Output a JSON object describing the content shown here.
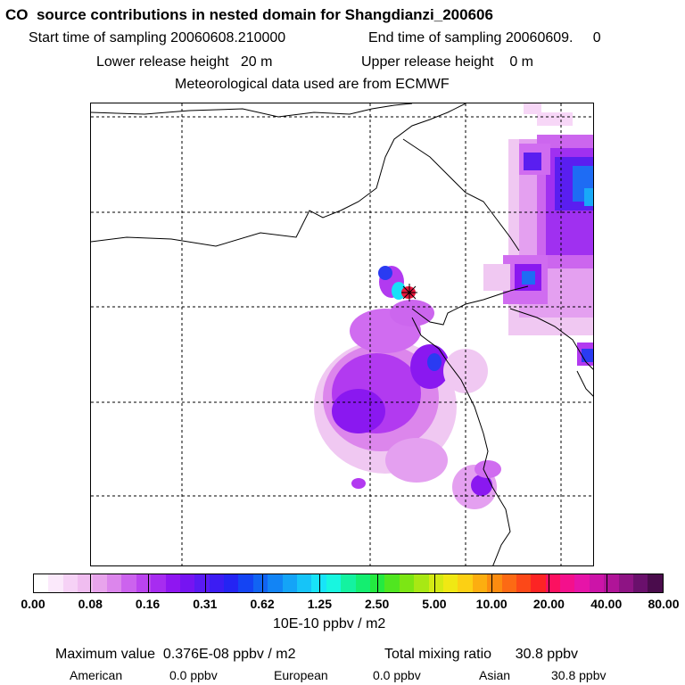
{
  "header": {
    "title": "CO  source contributions in nested domain for Shangdianzi_200606",
    "start_label": "Start time of sampling 20060608.210000",
    "end_label": "End time of sampling 20060609.     0",
    "lower_release": "Lower release height   20 m",
    "upper_release": "Upper release height    0 m",
    "meteo": "Meteorological data used are from ECMWF"
  },
  "map": {
    "station_marker": "star-icon",
    "gridlines": "dashed",
    "plume_colors": [
      "#f7d7f7",
      "#e9a7f3",
      "#d06cf0",
      "#b23af0",
      "#8a18f0",
      "#5a1ef0",
      "#2a3bf2",
      "#1e6cf4",
      "#18a9f8",
      "#18e0f8",
      "#14f2a6"
    ]
  },
  "colorbar": {
    "colors": [
      "#ffffff",
      "#fbe9fb",
      "#f6d2f6",
      "#f0bdf0",
      "#e8a4ec",
      "#dc86ec",
      "#cc63ee",
      "#bb44ef",
      "#a72cf0",
      "#8f16f1",
      "#7614f2",
      "#5a1af3",
      "#3c1cf3",
      "#2424f3",
      "#1444f3",
      "#1164f3",
      "#1284f5",
      "#14a4f7",
      "#16c4f8",
      "#18e4f8",
      "#18f6e0",
      "#14f2a0",
      "#14ee70",
      "#24ea40",
      "#50e620",
      "#7ce614",
      "#a8e814",
      "#d4ea14",
      "#f0e814",
      "#fcd014",
      "#fcae10",
      "#fc8c10",
      "#fc6a14",
      "#fc4818",
      "#fc2424",
      "#fc1060",
      "#f4108c",
      "#e614a8",
      "#cc14a8",
      "#b01498",
      "#8e1484",
      "#6a106c",
      "#4a0c4c"
    ],
    "ticks": [
      "0.00",
      "0.08",
      "0.16",
      "0.31",
      "0.62",
      "1.25",
      "2.50",
      "5.00",
      "10.00",
      "20.00",
      "40.00",
      "80.00"
    ],
    "unit": "10E-10 ppbv / m2"
  },
  "summary": {
    "max_value": "Maximum value  0.376E-08 ppbv / m2",
    "total": "Total mixing ratio      30.8 ppbv",
    "american_label": "American",
    "american_value": "0.0 ppbv",
    "european_label": "European",
    "european_value": "0.0 ppbv",
    "asian_label": "Asian",
    "asian_value": "30.8 ppbv"
  }
}
